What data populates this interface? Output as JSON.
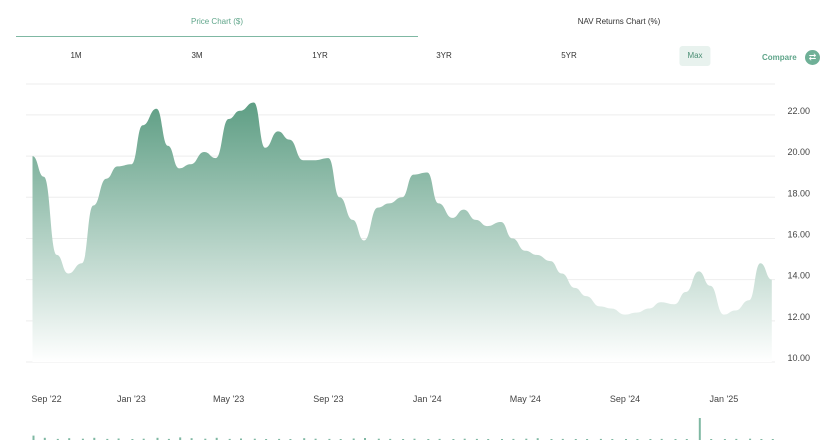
{
  "tabs": [
    {
      "label": "Price Chart ($)",
      "active": true
    },
    {
      "label": "NAV Returns Chart (%)",
      "active": false
    }
  ],
  "ranges": [
    "1M",
    "3M",
    "1YR",
    "3YR",
    "5YR",
    "Max"
  ],
  "selected_range": "Max",
  "compare": {
    "label": "Compare",
    "icon": "swap-arrows-icon"
  },
  "colors": {
    "accent": "#5fa58a",
    "area_top": "#5e9e84",
    "area_bottom": "#ffffff"
  },
  "chart_data": {
    "type": "area",
    "title": "",
    "xlabel": "",
    "ylabel": "",
    "ylim": [
      10,
      23.5
    ],
    "y_ticks": [
      10,
      12,
      14,
      16,
      18,
      20,
      22
    ],
    "y_tick_labels": [
      "10.00",
      "12.00",
      "14.00",
      "16.00",
      "18.00",
      "20.00",
      "22.00"
    ],
    "x_ticks": [
      "Sep '22",
      "Jan '23",
      "May '23",
      "Sep '23",
      "Jan '24",
      "May '24",
      "Sep '24",
      "Jan '25"
    ],
    "x": [
      "2022-09-01",
      "2022-09-15",
      "2022-10-01",
      "2022-10-15",
      "2022-11-01",
      "2022-11-15",
      "2022-12-01",
      "2022-12-15",
      "2023-01-01",
      "2023-01-15",
      "2023-02-01",
      "2023-02-15",
      "2023-03-01",
      "2023-03-15",
      "2023-04-01",
      "2023-04-15",
      "2023-05-01",
      "2023-05-15",
      "2023-06-01",
      "2023-06-15",
      "2023-07-01",
      "2023-07-15",
      "2023-08-01",
      "2023-08-15",
      "2023-09-01",
      "2023-09-15",
      "2023-10-01",
      "2023-10-15",
      "2023-11-01",
      "2023-11-15",
      "2023-12-01",
      "2023-12-15",
      "2024-01-01",
      "2024-01-15",
      "2024-02-01",
      "2024-02-15",
      "2024-03-01",
      "2024-03-15",
      "2024-04-01",
      "2024-04-15",
      "2024-05-01",
      "2024-05-15",
      "2024-06-01",
      "2024-06-15",
      "2024-07-01",
      "2024-07-15",
      "2024-08-01",
      "2024-08-15",
      "2024-09-01",
      "2024-09-15",
      "2024-10-01",
      "2024-10-15",
      "2024-11-01",
      "2024-11-15",
      "2024-12-01",
      "2024-12-15",
      "2025-01-01",
      "2025-01-15",
      "2025-02-01",
      "2025-02-15",
      "2025-03-01"
    ],
    "series": [
      {
        "values": [
          20.0,
          19.0,
          15.2,
          14.3,
          14.8,
          17.6,
          18.9,
          19.5,
          19.6,
          21.5,
          22.3,
          20.5,
          19.4,
          19.6,
          20.2,
          19.9,
          21.8,
          22.2,
          22.6,
          20.4,
          21.2,
          20.8,
          19.8,
          19.8,
          19.9,
          18.0,
          16.9,
          15.9,
          17.5,
          17.7,
          18.0,
          19.1,
          19.2,
          17.7,
          17.0,
          17.4,
          16.9,
          16.6,
          16.8,
          16.0,
          15.4,
          15.2,
          14.9,
          14.3,
          13.6,
          13.2,
          12.7,
          12.6,
          12.3,
          12.4,
          12.6,
          12.9,
          12.8,
          13.4,
          14.4,
          13.7,
          12.3,
          12.5,
          13.0,
          14.8,
          14.0
        ]
      }
    ],
    "volume": [
      0.2,
      0.1,
      0.05,
      0.08,
      0.06,
      0.1,
      0.05,
      0.07,
      0.04,
      0.06,
      0.1,
      0.05,
      0.12,
      0.08,
      0.06,
      0.1,
      0.05,
      0.07,
      0.06,
      0.04,
      0.05,
      0.03,
      0.08,
      0.06,
      0.05,
      0.04,
      0.07,
      0.09,
      0.06,
      0.05,
      0.04,
      0.06,
      0.03,
      0.05,
      0.04,
      0.06,
      0.05,
      0.04,
      0.03,
      0.05,
      0.06,
      0.08,
      0.04,
      0.05,
      0.03,
      0.04,
      0.05,
      0.03,
      0.02,
      0.04,
      0.03,
      0.05,
      0.04,
      0.03,
      1.0,
      0.04,
      0.03,
      0.05,
      0.06,
      0.04,
      0.03
    ],
    "grid": true
  }
}
